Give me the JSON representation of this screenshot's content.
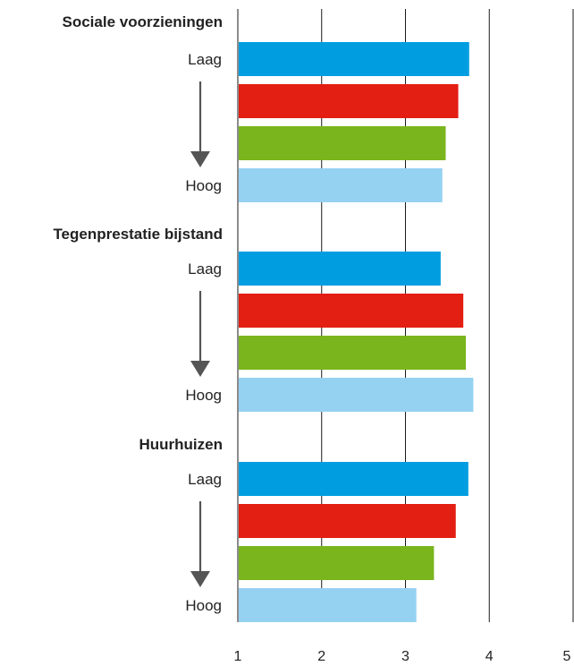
{
  "chart_data": {
    "type": "bar",
    "orientation": "horizontal",
    "xlim": [
      1,
      5
    ],
    "xticks": [
      "1",
      "2",
      "3",
      "4",
      "5"
    ],
    "grid": true,
    "legend": "none",
    "colors": [
      "#009ee0",
      "#e31e13",
      "#7ab51d",
      "#95d2f2"
    ],
    "groups": [
      {
        "title": "Sociale voorzieningen",
        "top_label": "Laag",
        "bottom_label": "Hoog",
        "values": [
          3.76,
          3.63,
          3.48,
          3.44
        ]
      },
      {
        "title": "Tegenprestatie bijstand",
        "top_label": "Laag",
        "bottom_label": "Hoog",
        "values": [
          3.42,
          3.69,
          3.72,
          3.81
        ]
      },
      {
        "title": "Huurhuizen",
        "top_label": "Laag",
        "bottom_label": "Hoog",
        "values": [
          3.75,
          3.6,
          3.34,
          3.13
        ]
      }
    ]
  }
}
